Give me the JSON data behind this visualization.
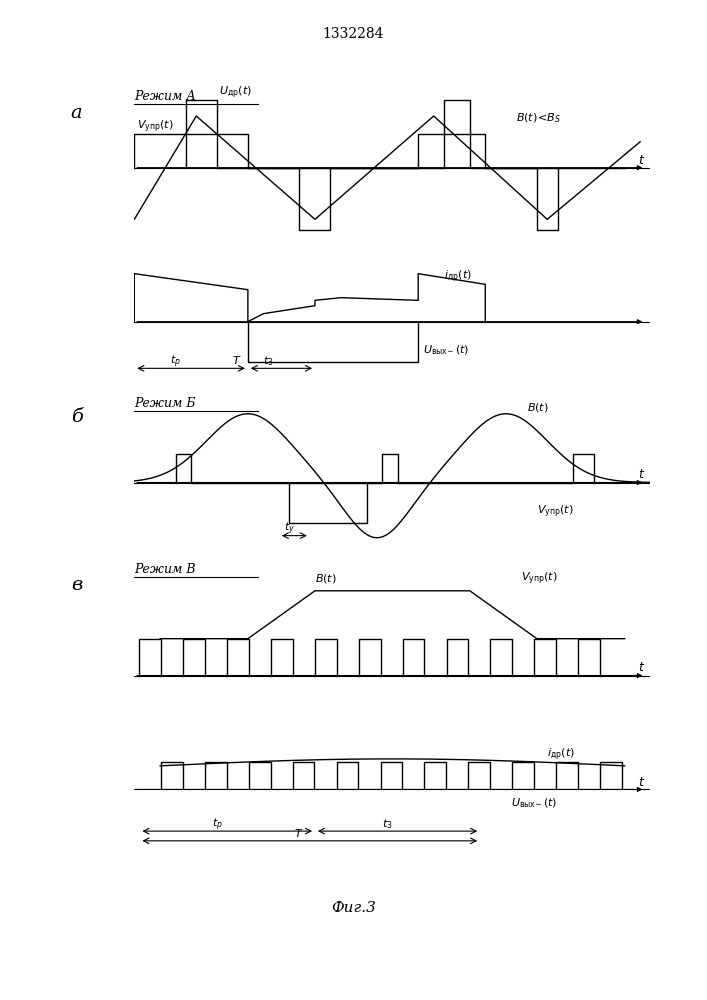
{
  "title": "1332284",
  "fig_caption": "Фиг.3",
  "bg_color": "#ffffff",
  "text_color": "#000000",
  "label_a": "а",
  "label_b": "б",
  "label_v": "в",
  "mode_a": "Режим А",
  "mode_b": "Режим Б",
  "mode_v": "Режим В",
  "lw": 1.0
}
